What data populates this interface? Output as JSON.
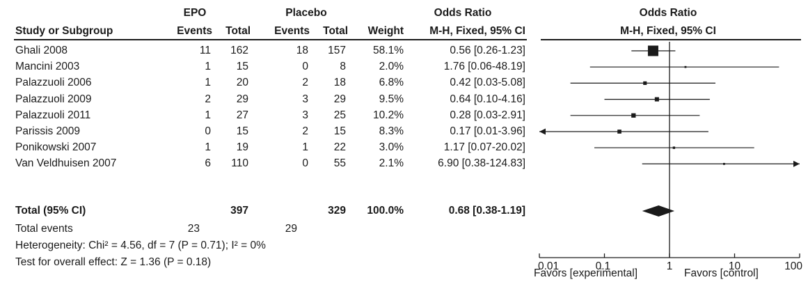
{
  "headers": {
    "study": "Study or Subgroup",
    "group1": "EPO",
    "group2": "Placebo",
    "events": "Events",
    "total": "Total",
    "weight": "Weight",
    "or_title": "Odds Ratio",
    "or_method": "M-H, Fixed, 95% CI",
    "plot_title": "Odds Ratio",
    "plot_method": "M-H, Fixed, 95% CI"
  },
  "rows": [
    {
      "study": "Ghali 2008",
      "e1": "11",
      "t1": "162",
      "e2": "18",
      "t2": "157",
      "weight": "58.1%",
      "ci": "0.56 [0.26-1.23]"
    },
    {
      "study": "Mancini 2003",
      "e1": "1",
      "t1": "15",
      "e2": "0",
      "t2": "8",
      "weight": "2.0%",
      "ci": "1.76 [0.06-48.19]"
    },
    {
      "study": "Palazzuoli 2006",
      "e1": "1",
      "t1": "20",
      "e2": "2",
      "t2": "18",
      "weight": "6.8%",
      "ci": "0.42 [0.03-5.08]"
    },
    {
      "study": "Palazzuoli 2009",
      "e1": "2",
      "t1": "29",
      "e2": "3",
      "t2": "29",
      "weight": "9.5%",
      "ci": "0.64 [0.10-4.16]"
    },
    {
      "study": "Palazzuoli 2011",
      "e1": "1",
      "t1": "27",
      "e2": "3",
      "t2": "25",
      "weight": "10.2%",
      "ci": "0.28 [0.03-2.91]"
    },
    {
      "study": "Parissis 2009",
      "e1": "0",
      "t1": "15",
      "e2": "2",
      "t2": "15",
      "weight": "8.3%",
      "ci": "0.17 [0.01-3.96]"
    },
    {
      "study": "Ponikowski 2007",
      "e1": "1",
      "t1": "19",
      "e2": "1",
      "t2": "22",
      "weight": "3.0%",
      "ci": "1.17 [0.07-20.02]"
    },
    {
      "study": "Van Veldhuisen 2007",
      "e1": "6",
      "t1": "110",
      "e2": "0",
      "t2": "55",
      "weight": "2.1%",
      "ci": "6.90 [0.38-124.83]"
    }
  ],
  "total": {
    "label": "Total (95% CI)",
    "t1": "397",
    "t2": "329",
    "weight": "100.0%",
    "ci": "0.68 [0.38-1.19]"
  },
  "total_events": {
    "label": "Total events",
    "e1": "23",
    "e2": "29"
  },
  "heterogeneity": "Heterogeneity: Chi² = 4.56, df = 7 (P = 0.71); I² = 0%",
  "overall_effect": "Test for overall effect: Z = 1.36 (P = 0.18)",
  "axis": {
    "ticks": [
      "0.01",
      "0.1",
      "1",
      "10",
      "100"
    ],
    "left_label": "Favors [experimental]",
    "right_label": "Favors [control]"
  },
  "chart_data": {
    "type": "forest",
    "scale": "log",
    "xlim": [
      0.01,
      100
    ],
    "reference": 1,
    "colors": {
      "ink": "#1a1a1a"
    },
    "studies": [
      {
        "name": "Ghali 2008",
        "or": 0.56,
        "lo": 0.26,
        "hi": 1.23,
        "weight": 58.1
      },
      {
        "name": "Mancini 2003",
        "or": 1.76,
        "lo": 0.06,
        "hi": 48.19,
        "weight": 2.0
      },
      {
        "name": "Palazzuoli 2006",
        "or": 0.42,
        "lo": 0.03,
        "hi": 5.08,
        "weight": 6.8
      },
      {
        "name": "Palazzuoli 2009",
        "or": 0.64,
        "lo": 0.1,
        "hi": 4.16,
        "weight": 9.5
      },
      {
        "name": "Palazzuoli 2011",
        "or": 0.28,
        "lo": 0.03,
        "hi": 2.91,
        "weight": 10.2
      },
      {
        "name": "Parissis 2009",
        "or": 0.17,
        "lo": 0.01,
        "hi": 3.96,
        "weight": 8.3
      },
      {
        "name": "Ponikowski 2007",
        "or": 1.17,
        "lo": 0.07,
        "hi": 20.02,
        "weight": 3.0
      },
      {
        "name": "Van Veldhuisen 2007",
        "or": 6.9,
        "lo": 0.38,
        "hi": 124.83,
        "weight": 2.1
      }
    ],
    "pooled": {
      "or": 0.68,
      "lo": 0.38,
      "hi": 1.19
    }
  }
}
